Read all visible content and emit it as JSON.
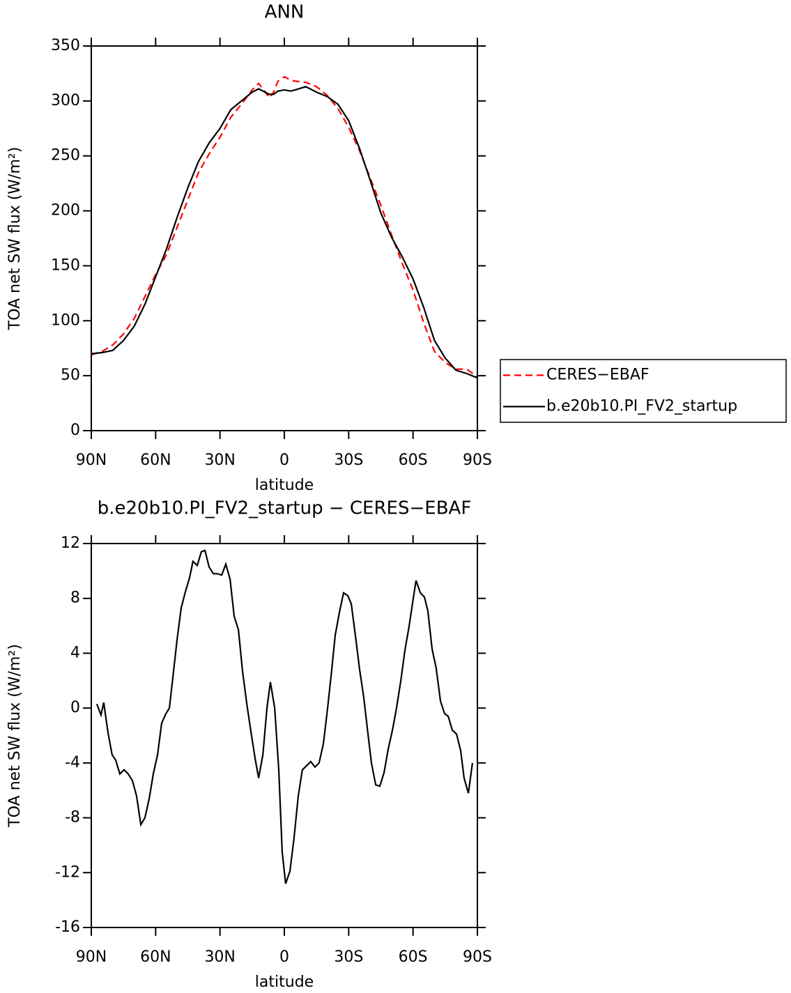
{
  "chart_data": [
    {
      "type": "line",
      "title": "ANN",
      "x_label": "latitude",
      "y_label": "TOA net SW flux (W/m²)",
      "x": [
        90,
        85,
        80,
        75,
        70,
        65,
        60,
        55,
        50,
        45,
        40,
        35,
        30,
        25,
        20,
        15,
        12,
        10,
        7,
        5,
        3,
        0,
        -3,
        -5,
        -10,
        -15,
        -20,
        -25,
        -30,
        -35,
        -40,
        -45,
        -50,
        -55,
        -60,
        -65,
        -70,
        -75,
        -80,
        -85,
        -90
      ],
      "series": [
        {
          "name": "CERES−EBAF",
          "color": "#ff0000",
          "dash": "dashed",
          "values": [
            69,
            72,
            78,
            88,
            102,
            122,
            142,
            160,
            185,
            210,
            235,
            252,
            267,
            285,
            297,
            310,
            316,
            311,
            303,
            308,
            318,
            322,
            319,
            318,
            317,
            313,
            305,
            293,
            276,
            255,
            230,
            205,
            178,
            152,
            128,
            98,
            72,
            62,
            56,
            56,
            49
          ]
        },
        {
          "name": "b.e20b10.PI_FV2_startup",
          "color": "#000000",
          "dash": "solid",
          "values": [
            70,
            71,
            73,
            82,
            95,
            115,
            140,
            165,
            194,
            221,
            245,
            262,
            275,
            292,
            300,
            308,
            311,
            309,
            306,
            306,
            309,
            310,
            309,
            310,
            313,
            308,
            304,
            297,
            282,
            257,
            228,
            198,
            176,
            158,
            138,
            112,
            82,
            66,
            55,
            52,
            48
          ]
        }
      ],
      "xlim": [
        90,
        -90
      ],
      "xticks": [
        {
          "value": 90,
          "label": "90N"
        },
        {
          "value": 60,
          "label": "60N"
        },
        {
          "value": 30,
          "label": "30N"
        },
        0,
        {
          "value": -30,
          "label": "30S"
        },
        {
          "value": -60,
          "label": "60S"
        },
        {
          "value": -90,
          "label": "90S"
        }
      ],
      "ylim": [
        0,
        350
      ],
      "yticks": [
        0,
        50,
        100,
        150,
        200,
        250,
        300,
        350
      ],
      "legend": "right"
    },
    {
      "type": "line",
      "title": "b.e20b10.PI_FV2_startup − CERES−EBAF",
      "x_label": "latitude",
      "y_label": "TOA net SW flux (W/m²)",
      "x": [
        87.4,
        85.5,
        84.2,
        82.2,
        80.3,
        78.6,
        76.7,
        74.7,
        72.8,
        70.8,
        68.9,
        66.9,
        65,
        63,
        61.1,
        59.1,
        57.2,
        55.2,
        53.6,
        52,
        50,
        48.1,
        46.1,
        44.2,
        42.6,
        40.6,
        38.7,
        37,
        35.1,
        33.1,
        31.2,
        29.2,
        27.3,
        25.3,
        23.4,
        21.4,
        19.5,
        17.5,
        15.5,
        13.6,
        12,
        10,
        8.1,
        6.5,
        4.5,
        2.6,
        1,
        -0.6,
        -2.6,
        -4.5,
        -6.5,
        -8.4,
        -10.4,
        -12.3,
        -14.3,
        -16.2,
        -18.2,
        -20.1,
        -22.1,
        -23.7,
        -25.7,
        -27.6,
        -29.6,
        -31.2,
        -33.2,
        -35.1,
        -37,
        -38.7,
        -40.6,
        -42.6,
        -44.5,
        -46.5,
        -48.4,
        -50.4,
        -52.3,
        -54.3,
        -56.2,
        -58.2,
        -60.1,
        -61.4,
        -63.4,
        -65.3,
        -66.9,
        -68.9,
        -70.8,
        -72.8,
        -74.7,
        -76.4,
        -78.3,
        -80.3,
        -82.2,
        -83.8,
        -85.8,
        -87.7
      ],
      "series": [
        {
          "color": "#000000",
          "dash": "solid",
          "values": [
            0.3,
            -0.5,
            0.4,
            -1.8,
            -3.4,
            -3.8,
            -4.8,
            -4.5,
            -4.8,
            -5.3,
            -6.4,
            -8.5,
            -8,
            -6.6,
            -4.8,
            -3.4,
            -1.1,
            -0.4,
            0,
            2.2,
            5,
            7.3,
            8.5,
            9.5,
            10.7,
            10.4,
            11.4,
            11.5,
            10.3,
            9.8,
            9.8,
            9.7,
            10.5,
            9.4,
            6.7,
            5.7,
            2.7,
            0.3,
            -1.8,
            -3.7,
            -5.1,
            -3.4,
            0,
            1.9,
            0,
            -4.5,
            -10.5,
            -12.8,
            -11.9,
            -9.5,
            -6.4,
            -4.5,
            -4.2,
            -3.9,
            -4.3,
            -4,
            -2.6,
            -0.1,
            2.8,
            5.3,
            7,
            8.4,
            8.2,
            7.6,
            5.2,
            2.8,
            0.8,
            -1.5,
            -4,
            -5.6,
            -5.7,
            -4.7,
            -3,
            -1.6,
            0,
            2,
            4.2,
            6,
            8,
            9.3,
            8.4,
            8.1,
            7.1,
            4.3,
            2.9,
            0.5,
            -0.4,
            -0.6,
            -1.6,
            -1.9,
            -3.1,
            -5.1,
            -6.2,
            -4
          ]
        }
      ],
      "xlim": [
        90,
        -90
      ],
      "xticks": [
        {
          "value": 90,
          "label": "90N"
        },
        {
          "value": 60,
          "label": "60N"
        },
        {
          "value": 30,
          "label": "30N"
        },
        0,
        {
          "value": -30,
          "label": "30S"
        },
        {
          "value": -60,
          "label": "60S"
        },
        {
          "value": -90,
          "label": "90S"
        }
      ],
      "ylim": [
        -16,
        12
      ],
      "yticks": [
        -16,
        -12,
        -8,
        -4,
        0,
        4,
        8,
        12
      ]
    }
  ]
}
